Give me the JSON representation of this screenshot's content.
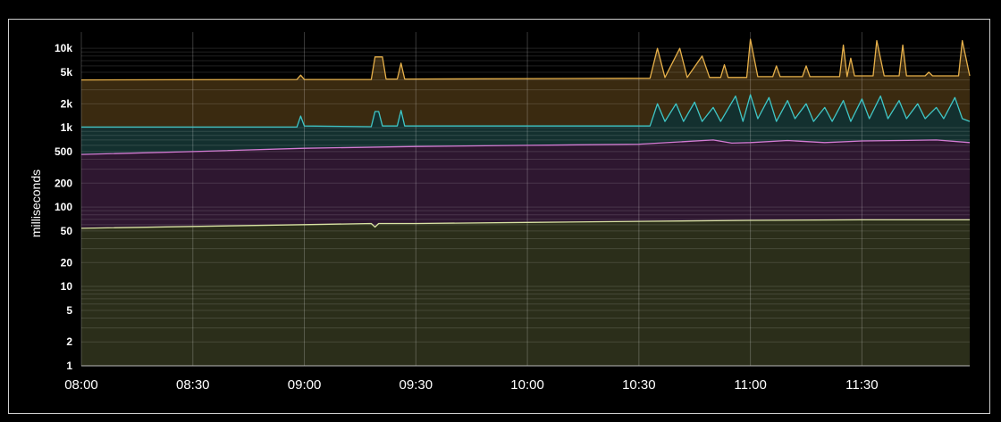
{
  "chart_data": {
    "type": "area",
    "title": "",
    "xlabel": "",
    "ylabel": "milliseconds",
    "y_scale": "log",
    "ylim": [
      1,
      16000
    ],
    "x_range": [
      "08:00",
      "11:59"
    ],
    "grid": true,
    "y_ticks": [
      "1",
      "2",
      "5",
      "10",
      "20",
      "50",
      "100",
      "200",
      "500",
      "1k",
      "2k",
      "5k",
      "10k"
    ],
    "y_tick_values": [
      1,
      2,
      5,
      10,
      20,
      50,
      100,
      200,
      500,
      1000,
      2000,
      5000,
      10000
    ],
    "x_ticks": [
      "08:00",
      "08:30",
      "09:00",
      "09:30",
      "10:00",
      "10:30",
      "11:00",
      "11:30"
    ],
    "x_tick_values": [
      "08:00",
      "08:30",
      "09:00",
      "09:30",
      "10:00",
      "10:30",
      "11:00",
      "11:30"
    ],
    "colors": {
      "background": "#000000",
      "grid": "#3a3a3a",
      "fills": [
        "#2b2e1a",
        "#2e1730",
        "#13302f",
        "#3a2a10"
      ],
      "lines": [
        "#d9e3a3",
        "#d37bd3",
        "#3fc6c6",
        "#e6b04a"
      ]
    },
    "series": [
      {
        "values": [
          [
            "08:00",
            54
          ],
          [
            "08:30",
            57
          ],
          [
            "09:00",
            60
          ],
          [
            "09:18",
            62
          ],
          [
            "09:19",
            56
          ],
          [
            "09:20",
            62
          ],
          [
            "09:30",
            62
          ],
          [
            "10:00",
            64
          ],
          [
            "10:30",
            66
          ],
          [
            "11:00",
            68
          ],
          [
            "11:30",
            69
          ],
          [
            "11:59",
            69
          ]
        ]
      },
      {
        "values": [
          [
            "08:00",
            460
          ],
          [
            "08:30",
            500
          ],
          [
            "09:00",
            550
          ],
          [
            "09:30",
            580
          ],
          [
            "10:00",
            600
          ],
          [
            "10:30",
            620
          ],
          [
            "10:50",
            700
          ],
          [
            "10:55",
            640
          ],
          [
            "11:00",
            650
          ],
          [
            "11:10",
            690
          ],
          [
            "11:20",
            650
          ],
          [
            "11:30",
            680
          ],
          [
            "11:40",
            690
          ],
          [
            "11:50",
            700
          ],
          [
            "11:59",
            650
          ]
        ]
      },
      {
        "values": [
          [
            "08:00",
            1020
          ],
          [
            "08:58",
            1020
          ],
          [
            "08:59",
            1400
          ],
          [
            "09:00",
            1050
          ],
          [
            "09:18",
            1030
          ],
          [
            "09:19",
            1600
          ],
          [
            "09:20",
            1600
          ],
          [
            "09:21",
            1050
          ],
          [
            "09:25",
            1050
          ],
          [
            "09:26",
            1650
          ],
          [
            "09:27",
            1050
          ],
          [
            "10:33",
            1050
          ],
          [
            "10:35",
            2000
          ],
          [
            "10:37",
            1200
          ],
          [
            "10:40",
            2000
          ],
          [
            "10:42",
            1200
          ],
          [
            "10:45",
            2100
          ],
          [
            "10:47",
            1200
          ],
          [
            "10:50",
            1800
          ],
          [
            "10:52",
            1200
          ],
          [
            "10:56",
            2500
          ],
          [
            "10:58",
            1200
          ],
          [
            "11:00",
            2600
          ],
          [
            "11:02",
            1300
          ],
          [
            "11:05",
            2400
          ],
          [
            "11:07",
            1200
          ],
          [
            "11:10",
            2200
          ],
          [
            "11:12",
            1300
          ],
          [
            "11:15",
            2000
          ],
          [
            "11:17",
            1200
          ],
          [
            "11:20",
            1800
          ],
          [
            "11:22",
            1200
          ],
          [
            "11:25",
            2200
          ],
          [
            "11:27",
            1200
          ],
          [
            "11:30",
            2300
          ],
          [
            "11:32",
            1300
          ],
          [
            "11:35",
            2500
          ],
          [
            "11:37",
            1300
          ],
          [
            "11:40",
            2200
          ],
          [
            "11:42",
            1300
          ],
          [
            "11:45",
            2000
          ],
          [
            "11:47",
            1300
          ],
          [
            "11:50",
            1800
          ],
          [
            "11:52",
            1300
          ],
          [
            "11:55",
            2400
          ],
          [
            "11:57",
            1300
          ],
          [
            "11:59",
            1200
          ]
        ]
      },
      {
        "values": [
          [
            "08:00",
            4000
          ],
          [
            "08:58",
            4050
          ],
          [
            "08:59",
            4600
          ],
          [
            "09:00",
            4050
          ],
          [
            "09:18",
            4050
          ],
          [
            "09:19",
            7800
          ],
          [
            "09:21",
            7800
          ],
          [
            "09:22",
            4100
          ],
          [
            "09:25",
            4100
          ],
          [
            "09:26",
            6500
          ],
          [
            "09:27",
            4100
          ],
          [
            "10:33",
            4200
          ],
          [
            "10:35",
            10000
          ],
          [
            "10:37",
            4300
          ],
          [
            "10:41",
            10000
          ],
          [
            "10:43",
            4300
          ],
          [
            "10:47",
            8000
          ],
          [
            "10:49",
            4300
          ],
          [
            "10:52",
            4300
          ],
          [
            "10:53",
            6200
          ],
          [
            "10:54",
            4300
          ],
          [
            "10:59",
            4300
          ],
          [
            "11:00",
            13000
          ],
          [
            "11:02",
            4400
          ],
          [
            "11:06",
            4400
          ],
          [
            "11:07",
            6000
          ],
          [
            "11:08",
            4400
          ],
          [
            "11:14",
            4400
          ],
          [
            "11:15",
            6000
          ],
          [
            "11:16",
            4400
          ],
          [
            "11:24",
            4400
          ],
          [
            "11:25",
            11000
          ],
          [
            "11:26",
            4400
          ],
          [
            "11:27",
            7500
          ],
          [
            "11:28",
            4500
          ],
          [
            "11:33",
            4500
          ],
          [
            "11:34",
            12500
          ],
          [
            "11:36",
            4500
          ],
          [
            "11:40",
            4500
          ],
          [
            "11:41",
            11000
          ],
          [
            "11:42",
            4500
          ],
          [
            "11:47",
            4500
          ],
          [
            "11:48",
            5000
          ],
          [
            "11:49",
            4500
          ],
          [
            "11:56",
            4500
          ],
          [
            "11:57",
            12500
          ],
          [
            "11:59",
            4500
          ]
        ]
      }
    ]
  }
}
